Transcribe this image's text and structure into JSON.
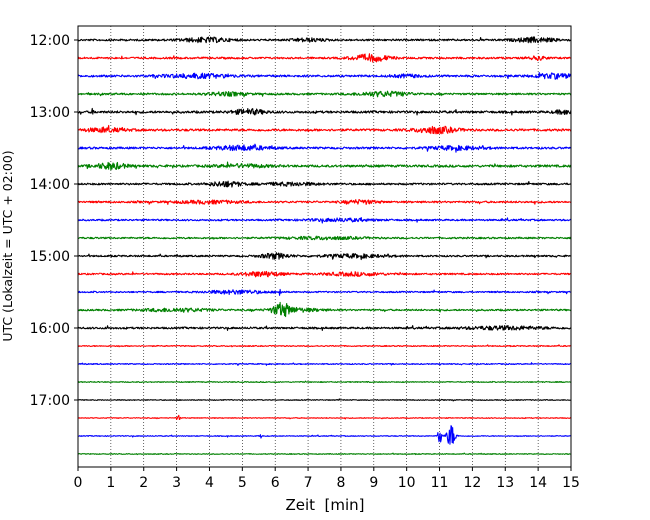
{
  "chart_data": {
    "type": "line",
    "title": "",
    "xlabel": "Zeit  [min]",
    "ylabel": "UTC (Lokalzeit = UTC + 02:00)",
    "xlim": [
      0,
      15
    ],
    "x_ticks": [
      0,
      1,
      2,
      3,
      4,
      5,
      6,
      7,
      8,
      9,
      10,
      11,
      12,
      13,
      14,
      15
    ],
    "x_tick_labels": [
      "0",
      "1",
      "2",
      "3",
      "4",
      "5",
      "6",
      "7",
      "8",
      "9",
      "10",
      "11",
      "12",
      "13",
      "14",
      "15"
    ],
    "y_tick_labels": [
      "12:00",
      "13:00",
      "14:00",
      "15:00",
      "16:00",
      "17:00"
    ],
    "grid": "vertical dotted lines at each minute",
    "trace_interval_minutes": 15,
    "trace_colors": [
      "#000000",
      "#ff0000",
      "#0000ff",
      "#008000"
    ],
    "traces": [
      {
        "start": "12:00",
        "color": "#000000",
        "noise": 0.9,
        "events": [
          [
            3.9,
            0.7,
            2.2
          ],
          [
            13.9,
            0.6,
            2.2
          ],
          [
            7.0,
            0.5,
            1.5
          ]
        ]
      },
      {
        "start": "12:15",
        "color": "#ff0000",
        "noise": 0.9,
        "events": [
          [
            8.9,
            0.55,
            3.4
          ],
          [
            14.0,
            0.25,
            1.6
          ]
        ]
      },
      {
        "start": "12:30",
        "color": "#0000ff",
        "noise": 1.0,
        "events": [
          [
            3.6,
            1.0,
            2.0
          ],
          [
            14.5,
            0.6,
            2.2
          ],
          [
            10.0,
            0.4,
            1.3
          ]
        ]
      },
      {
        "start": "12:45",
        "color": "#008000",
        "noise": 0.9,
        "events": [
          [
            9.3,
            0.8,
            2.2
          ],
          [
            4.5,
            0.6,
            1.6
          ]
        ]
      },
      {
        "start": "13:00",
        "color": "#000000",
        "noise": 1.1,
        "events": [
          [
            5.2,
            0.5,
            2.4
          ],
          [
            14.8,
            0.3,
            1.8
          ],
          [
            0.45,
            0.04,
            3.0
          ]
        ]
      },
      {
        "start": "13:15",
        "color": "#ff0000",
        "noise": 1.1,
        "events": [
          [
            10.9,
            0.6,
            3.2
          ],
          [
            0.8,
            0.6,
            1.8
          ]
        ]
      },
      {
        "start": "13:30",
        "color": "#0000ff",
        "noise": 1.0,
        "events": [
          [
            5.0,
            0.8,
            2.2
          ],
          [
            11.5,
            0.8,
            1.6
          ]
        ]
      },
      {
        "start": "13:45",
        "color": "#008000",
        "noise": 1.1,
        "events": [
          [
            1.0,
            0.45,
            3.0
          ],
          [
            5.0,
            0.8,
            1.4
          ]
        ]
      },
      {
        "start": "14:00",
        "color": "#000000",
        "noise": 0.9,
        "events": [
          [
            4.5,
            0.5,
            2.5
          ],
          [
            6.5,
            0.8,
            1.5
          ]
        ]
      },
      {
        "start": "14:15",
        "color": "#ff0000",
        "noise": 0.9,
        "events": [
          [
            8.6,
            0.5,
            1.8
          ],
          [
            4.0,
            1.0,
            1.3
          ]
        ]
      },
      {
        "start": "14:30",
        "color": "#0000ff",
        "noise": 0.8,
        "events": [
          [
            8.0,
            1.0,
            1.3
          ]
        ]
      },
      {
        "start": "14:45",
        "color": "#008000",
        "noise": 0.8,
        "events": [
          [
            7.5,
            1.2,
            1.2
          ]
        ]
      },
      {
        "start": "15:00",
        "color": "#000000",
        "noise": 0.8,
        "events": [
          [
            6.0,
            0.45,
            2.6
          ],
          [
            8.4,
            1.0,
            1.6
          ]
        ]
      },
      {
        "start": "15:15",
        "color": "#ff0000",
        "noise": 0.8,
        "events": [
          [
            5.6,
            0.6,
            2.4
          ],
          [
            8.4,
            0.9,
            1.6
          ]
        ]
      },
      {
        "start": "15:30",
        "color": "#0000ff",
        "noise": 0.7,
        "events": [
          [
            4.8,
            0.9,
            1.8
          ],
          [
            6.15,
            0.03,
            6.0
          ]
        ]
      },
      {
        "start": "15:45",
        "color": "#008000",
        "noise": 0.8,
        "events": [
          [
            6.2,
            0.25,
            6.0
          ],
          [
            3.0,
            1.0,
            1.6
          ],
          [
            6.6,
            0.8,
            1.8
          ]
        ]
      },
      {
        "start": "16:00",
        "color": "#000000",
        "noise": 0.9,
        "events": [
          [
            0.88,
            0.03,
            3.0
          ],
          [
            13.0,
            1.2,
            1.6
          ]
        ]
      },
      {
        "start": "16:15",
        "color": "#ff0000",
        "noise": 0.5,
        "events": []
      },
      {
        "start": "16:30",
        "color": "#0000ff",
        "noise": 0.5,
        "events": []
      },
      {
        "start": "16:45",
        "color": "#008000",
        "noise": 0.45,
        "events": []
      },
      {
        "start": "17:00",
        "color": "#000000",
        "noise": 0.4,
        "events": []
      },
      {
        "start": "17:15",
        "color": "#ff0000",
        "noise": 0.4,
        "events": [
          [
            3.05,
            0.05,
            3.0
          ]
        ]
      },
      {
        "start": "17:30",
        "color": "#0000ff",
        "noise": 0.4,
        "events": [
          [
            11.0,
            0.05,
            12.0
          ],
          [
            11.35,
            0.12,
            12.0
          ],
          [
            5.55,
            0.03,
            3.0
          ]
        ]
      },
      {
        "start": "17:45",
        "color": "#008000",
        "noise": 0.4,
        "events": []
      }
    ]
  }
}
